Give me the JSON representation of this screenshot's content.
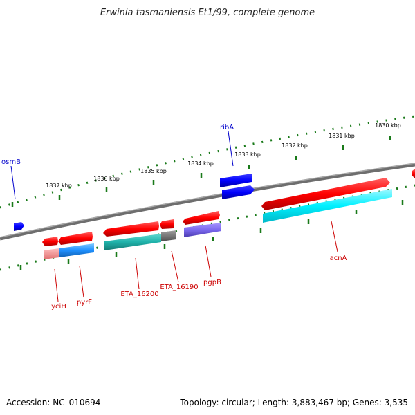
{
  "title": "Erwinia tasmaniensis Et1/99, complete genome",
  "footer": {
    "accession": "Accession: NC_010694",
    "summary": "Topology: circular; Length: 3,883,467 bp; Genes: 3,535"
  },
  "ticks": [
    "1837 kbp",
    "1836 kbp",
    "1835 kbp",
    "1834 kbp",
    "1833 kbp",
    "1832 kbp",
    "1831 kbp",
    "1830 kbp"
  ],
  "genes": [
    {
      "id": "osmB",
      "label": "osmB",
      "color": "#0000cc"
    },
    {
      "id": "ribA",
      "label": "ribA",
      "color": "#0000cc"
    },
    {
      "id": "yciH",
      "label": "yciH",
      "color": "#cc0000"
    },
    {
      "id": "pyrF",
      "label": "pyrF",
      "color": "#cc0000"
    },
    {
      "id": "ETA_16200",
      "label": "ETA_16200",
      "color": "#cc0000"
    },
    {
      "id": "ETA_16190",
      "label": "ETA_16190",
      "color": "#cc0000"
    },
    {
      "id": "pgpB",
      "label": "pgpB",
      "color": "#cc0000"
    },
    {
      "id": "acnA",
      "label": "acnA",
      "color": "#cc0000"
    }
  ],
  "colors": {
    "backbone": "#808080",
    "tick": "#1a7a1a",
    "forward": "#ff0000",
    "reverse": "#0000ff",
    "cyan": "#00e5ee",
    "teal": "#20b2aa",
    "blue_light": "#1e90ff",
    "purple": "#7b68ee",
    "gray": "#707070",
    "pink": "#f08080"
  }
}
